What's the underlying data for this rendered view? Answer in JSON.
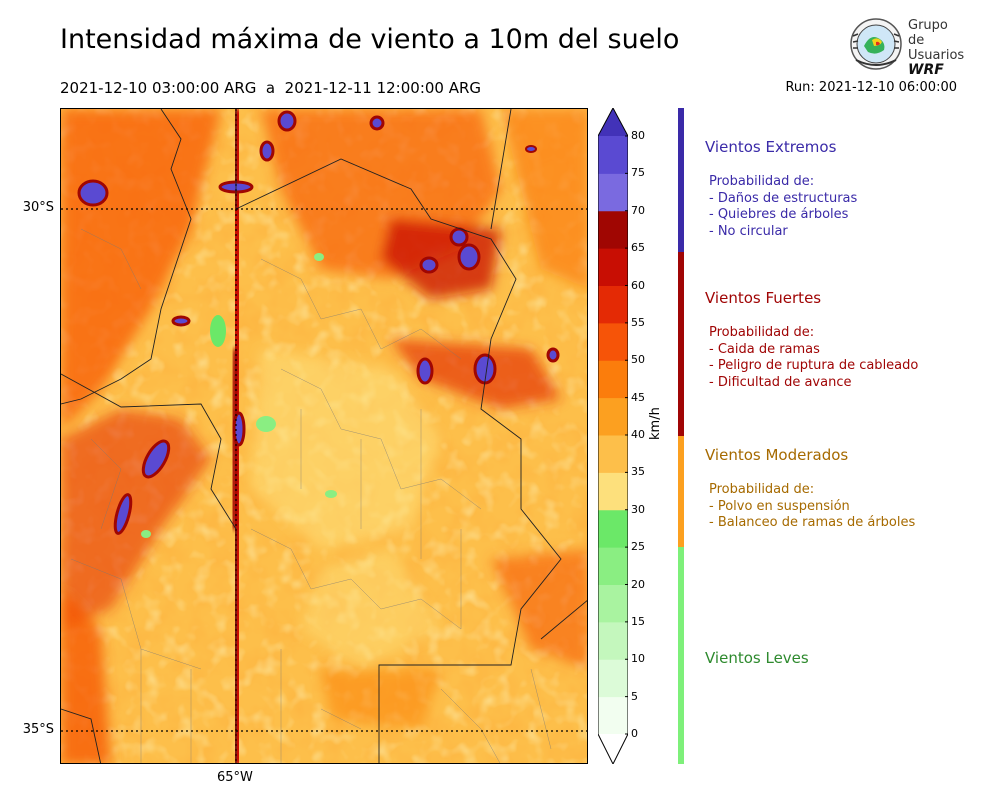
{
  "header": {
    "title": "Intensidad máxima de viento a 10m del suelo",
    "period": "2021-12-10 03:00:00 ARG  a  2021-12-11 12:00:00 ARG",
    "run": "Run: 2021-12-10 06:00:00"
  },
  "logo": {
    "line1": "Grupo de",
    "line2": "Usuarios",
    "line3": "WRF"
  },
  "map": {
    "lat_labels": [
      "30°S",
      "35°S"
    ],
    "lon_labels": [
      "65°W"
    ]
  },
  "colorbar": {
    "unit": "km/h",
    "ticks": [
      "0",
      "5",
      "10",
      "15",
      "20",
      "25",
      "30",
      "35",
      "40",
      "45",
      "50",
      "55",
      "60",
      "65",
      "70",
      "75",
      "80"
    ],
    "colors": [
      "#f2fef0",
      "#dcfbd8",
      "#c4f7bd",
      "#a9f3a0",
      "#8aee82",
      "#6be868",
      "#fde07c",
      "#fdbf4a",
      "#fca020",
      "#fb7d0c",
      "#f65408",
      "#e42a05",
      "#c80e03",
      "#a00602",
      "#7a6ae0",
      "#5a4ad2",
      "#4232b8"
    ]
  },
  "categories": [
    {
      "title": "Vientos Extremos",
      "color": "#3a2aa8",
      "lines": [
        "Probabilidad de:",
        "- Daños de estructuras",
        "- Quiebres de árboles",
        "- No circular"
      ]
    },
    {
      "title": "Vientos Fuertes",
      "color": "#a00505",
      "lines": [
        "Probabilidad de:",
        "- Caida de ramas",
        "- Peligro de ruptura de cableado",
        "- Dificultad de avance"
      ]
    },
    {
      "title": "Vientos Moderados",
      "color": "#a66a00",
      "lines": [
        "Probabilidad de:",
        "- Polvo en suspensión",
        "- Balanceo de ramas de árboles"
      ]
    },
    {
      "title": "Vientos Leves",
      "color": "#2e8a2e",
      "lines": []
    }
  ],
  "category_bar_colors": [
    "#3a2aa8",
    "#a00505",
    "#fca020",
    "#7ef07a"
  ]
}
